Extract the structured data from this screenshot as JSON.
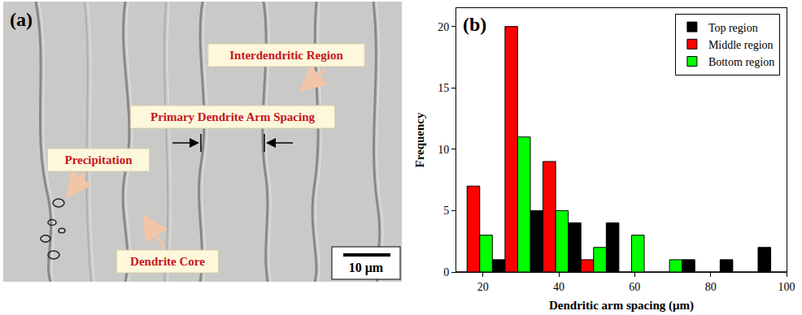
{
  "image_panel": {
    "letter": "(a)",
    "type": "micrograph",
    "labels": [
      "Interdendritic Region",
      "Primary Dendrite Arm Spacing",
      "Precipitation",
      "Dendrite Core"
    ],
    "scale_bar": "10 μm"
  },
  "chart_data": {
    "type": "bar",
    "panel_label": "(b)",
    "x_label": "Dendritic arm spacing (μm)",
    "y_label": "Frequency",
    "x": [
      17.5,
      27.5,
      37.5,
      47.5,
      57.5,
      67.5,
      77.5,
      87.5,
      97.5
    ],
    "series": [
      {
        "name": "Top region",
        "color": "#000000",
        "values": [
          0,
          1,
          5,
          4,
          4,
          0,
          1,
          1,
          2
        ]
      },
      {
        "name": "Middle region",
        "color": "#ff0000",
        "values": [
          7,
          20,
          9,
          1,
          0,
          0,
          0,
          0,
          0
        ]
      },
      {
        "name": "Bottom region",
        "color": "#00ff00",
        "values": [
          3,
          11,
          5,
          2,
          3,
          1,
          0,
          0,
          0
        ]
      }
    ],
    "xlim": [
      13,
      100
    ],
    "xticks": [
      20,
      40,
      60,
      80,
      100
    ],
    "ylim": [
      0,
      21.5
    ],
    "yticks": [
      0,
      5,
      10,
      15,
      20
    ],
    "legend": "upper right",
    "grid": false
  }
}
